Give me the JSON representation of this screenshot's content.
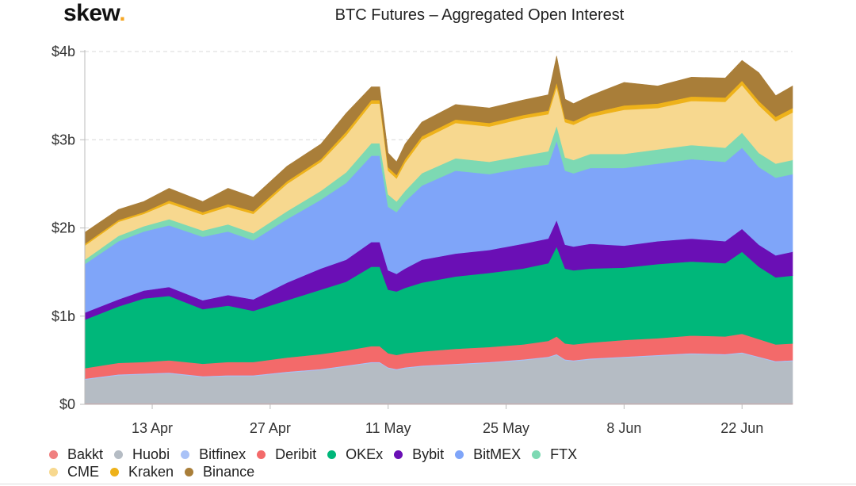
{
  "logo": {
    "text": "skew",
    "dot": "."
  },
  "chart_data": {
    "type": "area",
    "stacked": true,
    "title": "BTC Futures – Aggregated Open Interest",
    "xlabel": "",
    "ylabel": "",
    "ylim": [
      0,
      4000000000
    ],
    "y_ticks": [
      {
        "value": 0,
        "label": "$0"
      },
      {
        "value": 1000000000,
        "label": "$1b"
      },
      {
        "value": 2000000000,
        "label": "$2b"
      },
      {
        "value": 3000000000,
        "label": "$3b"
      },
      {
        "value": 4000000000,
        "label": "$4b"
      }
    ],
    "x_range_days": [
      0,
      84
    ],
    "x_ticks": [
      {
        "day": 8,
        "label": "13 Apr"
      },
      {
        "day": 22,
        "label": "27 Apr"
      },
      {
        "day": 36,
        "label": "11 May"
      },
      {
        "day": 50,
        "label": "25 May"
      },
      {
        "day": 64,
        "label": "8 Jun"
      },
      {
        "day": 78,
        "label": "22 Jun"
      }
    ],
    "x_days": [
      0,
      4,
      7,
      10,
      14,
      17,
      20,
      24,
      28,
      31,
      34,
      35,
      36,
      37,
      38,
      40,
      44,
      48,
      52,
      55,
      56,
      57,
      58,
      60,
      64,
      68,
      72,
      76,
      78,
      80,
      82,
      84
    ],
    "total_values": [
      1.95,
      2.2,
      2.3,
      2.45,
      2.3,
      2.45,
      2.35,
      2.7,
      2.95,
      3.3,
      3.6,
      3.6,
      2.85,
      2.75,
      2.95,
      3.2,
      3.4,
      3.35,
      3.45,
      3.55,
      3.95,
      3.45,
      3.4,
      3.5,
      3.65,
      3.6,
      3.7,
      3.7,
      3.9,
      3.75,
      3.5,
      3.6
    ],
    "total_unit": "$b",
    "series": [
      {
        "name": "Bakkt",
        "color": "#f08080",
        "values": [
          0.01,
          0.01,
          0.01,
          0.01,
          0.01,
          0.01,
          0.01,
          0.01,
          0.01,
          0.01,
          0.01,
          0.01,
          0.01,
          0.01,
          0.01,
          0.01,
          0.01,
          0.01,
          0.01,
          0.01,
          0.01,
          0.01,
          0.01,
          0.01,
          0.01,
          0.01,
          0.01,
          0.01,
          0.01,
          0.01,
          0.01,
          0.01
        ]
      },
      {
        "name": "Huobi",
        "color": "#b5bcc4",
        "values": [
          0.27,
          0.32,
          0.33,
          0.34,
          0.3,
          0.31,
          0.31,
          0.35,
          0.38,
          0.42,
          0.46,
          0.46,
          0.4,
          0.38,
          0.4,
          0.42,
          0.44,
          0.46,
          0.49,
          0.52,
          0.55,
          0.49,
          0.48,
          0.5,
          0.52,
          0.54,
          0.56,
          0.55,
          0.57,
          0.52,
          0.47,
          0.48
        ]
      },
      {
        "name": "Bitfinex",
        "color": "#a9c2f7",
        "values": [
          0.01,
          0.01,
          0.01,
          0.01,
          0.01,
          0.01,
          0.01,
          0.01,
          0.01,
          0.01,
          0.01,
          0.01,
          0.01,
          0.01,
          0.01,
          0.01,
          0.01,
          0.01,
          0.01,
          0.01,
          0.01,
          0.01,
          0.01,
          0.01,
          0.01,
          0.01,
          0.01,
          0.01,
          0.01,
          0.01,
          0.01,
          0.01
        ]
      },
      {
        "name": "Deribit",
        "color": "#f36a6a",
        "values": [
          0.12,
          0.13,
          0.13,
          0.14,
          0.14,
          0.15,
          0.15,
          0.16,
          0.17,
          0.17,
          0.18,
          0.18,
          0.16,
          0.16,
          0.16,
          0.16,
          0.17,
          0.17,
          0.17,
          0.18,
          0.2,
          0.18,
          0.18,
          0.18,
          0.19,
          0.19,
          0.2,
          0.2,
          0.21,
          0.2,
          0.19,
          0.19
        ]
      },
      {
        "name": "OKEx",
        "color": "#00b77a",
        "values": [
          0.55,
          0.64,
          0.72,
          0.73,
          0.62,
          0.64,
          0.58,
          0.65,
          0.73,
          0.78,
          0.9,
          0.9,
          0.72,
          0.72,
          0.74,
          0.78,
          0.82,
          0.84,
          0.86,
          0.88,
          1.02,
          0.85,
          0.84,
          0.84,
          0.82,
          0.84,
          0.84,
          0.83,
          0.93,
          0.82,
          0.76,
          0.77
        ]
      },
      {
        "name": "Bybit",
        "color": "#6a0fb5",
        "values": [
          0.08,
          0.08,
          0.09,
          0.1,
          0.1,
          0.12,
          0.13,
          0.2,
          0.24,
          0.25,
          0.28,
          0.28,
          0.22,
          0.2,
          0.22,
          0.26,
          0.26,
          0.26,
          0.28,
          0.28,
          0.3,
          0.27,
          0.27,
          0.28,
          0.25,
          0.26,
          0.26,
          0.25,
          0.26,
          0.25,
          0.25,
          0.27
        ]
      },
      {
        "name": "BitMEX",
        "color": "#7fa5f9",
        "values": [
          0.55,
          0.66,
          0.67,
          0.7,
          0.72,
          0.72,
          0.67,
          0.72,
          0.78,
          0.87,
          0.98,
          0.98,
          0.72,
          0.7,
          0.76,
          0.84,
          0.94,
          0.86,
          0.86,
          0.84,
          0.9,
          0.84,
          0.83,
          0.86,
          0.88,
          0.88,
          0.9,
          0.9,
          0.92,
          0.88,
          0.88,
          0.88
        ]
      },
      {
        "name": "FTX",
        "color": "#7dd9b3",
        "values": [
          0.05,
          0.06,
          0.06,
          0.07,
          0.07,
          0.08,
          0.08,
          0.09,
          0.1,
          0.12,
          0.14,
          0.14,
          0.14,
          0.12,
          0.12,
          0.14,
          0.14,
          0.14,
          0.14,
          0.15,
          0.17,
          0.15,
          0.15,
          0.16,
          0.16,
          0.16,
          0.16,
          0.16,
          0.17,
          0.16,
          0.16,
          0.16
        ]
      },
      {
        "name": "CME",
        "color": "#f7d88f",
        "values": [
          0.16,
          0.16,
          0.14,
          0.18,
          0.18,
          0.2,
          0.22,
          0.31,
          0.33,
          0.42,
          0.45,
          0.45,
          0.27,
          0.26,
          0.32,
          0.38,
          0.4,
          0.4,
          0.42,
          0.42,
          0.44,
          0.4,
          0.4,
          0.42,
          0.5,
          0.47,
          0.5,
          0.52,
          0.54,
          0.54,
          0.48,
          0.54
        ]
      },
      {
        "name": "Kraken",
        "color": "#eeb21a",
        "values": [
          0.02,
          0.02,
          0.02,
          0.03,
          0.03,
          0.03,
          0.03,
          0.03,
          0.03,
          0.04,
          0.04,
          0.04,
          0.04,
          0.04,
          0.04,
          0.04,
          0.04,
          0.04,
          0.04,
          0.04,
          0.05,
          0.04,
          0.04,
          0.04,
          0.05,
          0.05,
          0.05,
          0.05,
          0.05,
          0.05,
          0.05,
          0.05
        ]
      },
      {
        "name": "Binance",
        "color": "#a97e39",
        "values": [
          0.13,
          0.12,
          0.12,
          0.14,
          0.12,
          0.18,
          0.16,
          0.17,
          0.17,
          0.21,
          0.15,
          0.15,
          0.16,
          0.15,
          0.17,
          0.16,
          0.17,
          0.17,
          0.17,
          0.18,
          0.3,
          0.22,
          0.2,
          0.2,
          0.26,
          0.2,
          0.22,
          0.22,
          0.23,
          0.32,
          0.24,
          0.25
        ]
      }
    ],
    "legend_position": "bottom",
    "grid": "horizontal-dashed"
  }
}
